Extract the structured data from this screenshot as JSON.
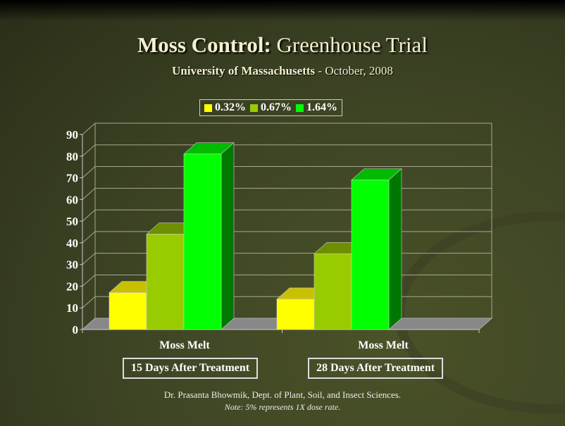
{
  "title": {
    "bold": "Moss Control:",
    "rest": "Greenhouse Trial"
  },
  "subtitle": {
    "bold": "University of Massachusetts",
    "rest": "- October, 2008"
  },
  "footer": {
    "credit": "Dr. Prasanta Bhowmik, Dept. of Plant, Soil, and Insect Sciences.",
    "note": "Note: 5% represents 1X dose rate."
  },
  "chart_data": {
    "type": "bar",
    "style": "3d-clustered",
    "categories": [
      "Moss Melt",
      "Moss Melt"
    ],
    "category_boxes": [
      "15 Days After Treatment",
      "28 Days After Treatment"
    ],
    "series": [
      {
        "name": "0.32%",
        "values": [
          17,
          14
        ],
        "color": "#ffff00"
      },
      {
        "name": "0.67%",
        "values": [
          44,
          35
        ],
        "color": "#99cc00"
      },
      {
        "name": "1.64%",
        "values": [
          81,
          69
        ],
        "color": "#00ff00"
      }
    ],
    "ylim": [
      0,
      90
    ],
    "yticks": [
      "0",
      "10",
      "20",
      "30",
      "40",
      "50",
      "60",
      "70",
      "80",
      "90"
    ],
    "grid": true,
    "legend": "top"
  }
}
